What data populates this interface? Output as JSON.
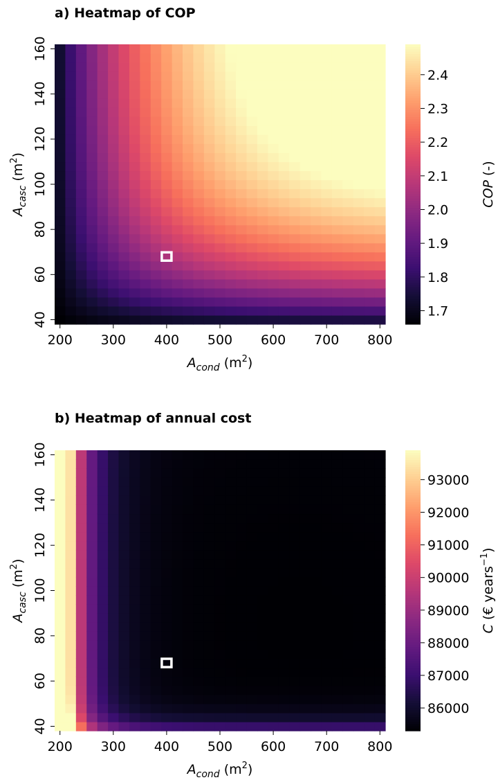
{
  "chart_data": [
    {
      "type": "heatmap",
      "title": "a) Heatmap of COP",
      "xlabel": "A_cond (m²)",
      "ylabel": "A_casc (m²)",
      "xlabel_parts": {
        "sym": "A",
        "sub": "cond",
        "unit": "(m",
        "sup": "2",
        "end": ")"
      },
      "ylabel_parts": {
        "sym": "A",
        "sub": "casc",
        "unit": "(m",
        "sup": "2",
        "end": ")"
      },
      "x_range": [
        200,
        800
      ],
      "y_range": [
        40,
        160
      ],
      "x_ticks": [
        "200",
        "300",
        "400",
        "500",
        "600",
        "700",
        "800"
      ],
      "y_ticks": [
        "40",
        "60",
        "80",
        "100",
        "120",
        "140",
        "160"
      ],
      "x_tick_values": [
        200,
        300,
        400,
        500,
        600,
        700,
        800
      ],
      "y_tick_values": [
        40,
        60,
        80,
        100,
        120,
        140,
        160
      ],
      "colorbar": {
        "label": "COP (-)",
        "label_parts": {
          "italic": "COP",
          "rest": " (-)"
        },
        "min": 1.66,
        "max": 2.49,
        "ticks": [
          "1.7",
          "1.8",
          "1.9",
          "2.0",
          "2.1",
          "2.2",
          "2.3",
          "2.4"
        ],
        "tick_values": [
          1.7,
          1.8,
          1.9,
          2.0,
          2.1,
          2.2,
          2.3,
          2.4
        ]
      },
      "colormap": "magma",
      "marker": {
        "x": 400,
        "y": 68,
        "color": "#ffffff"
      },
      "grid": false
    },
    {
      "type": "heatmap",
      "title": "b) Heatmap of annual cost",
      "xlabel": "A_cond (m²)",
      "ylabel": "A_casc (m²)",
      "xlabel_parts": {
        "sym": "A",
        "sub": "cond",
        "unit": "(m",
        "sup": "2",
        "end": ")"
      },
      "ylabel_parts": {
        "sym": "A",
        "sub": "casc",
        "unit": "(m",
        "sup": "2",
        "end": ")"
      },
      "x_range": [
        200,
        800
      ],
      "y_range": [
        40,
        160
      ],
      "x_ticks": [
        "200",
        "300",
        "400",
        "500",
        "600",
        "700",
        "800"
      ],
      "y_ticks": [
        "40",
        "60",
        "80",
        "100",
        "120",
        "140",
        "160"
      ],
      "x_tick_values": [
        200,
        300,
        400,
        500,
        600,
        700,
        800
      ],
      "y_tick_values": [
        40,
        60,
        80,
        100,
        120,
        140,
        160
      ],
      "colorbar": {
        "label": "C (€ years⁻¹)",
        "label_parts": {
          "italic": "C",
          "rest": " (€ years",
          "sup": "−1",
          "end": ")"
        },
        "min": 85300,
        "max": 93900,
        "ticks": [
          "86000",
          "87000",
          "88000",
          "89000",
          "90000",
          "91000",
          "92000",
          "93000"
        ],
        "tick_values": [
          86000,
          87000,
          88000,
          89000,
          90000,
          91000,
          92000,
          93000
        ]
      },
      "colormap": "magma",
      "marker": {
        "x": 400,
        "y": 68,
        "color": "#ffffff"
      },
      "grid": false
    }
  ]
}
